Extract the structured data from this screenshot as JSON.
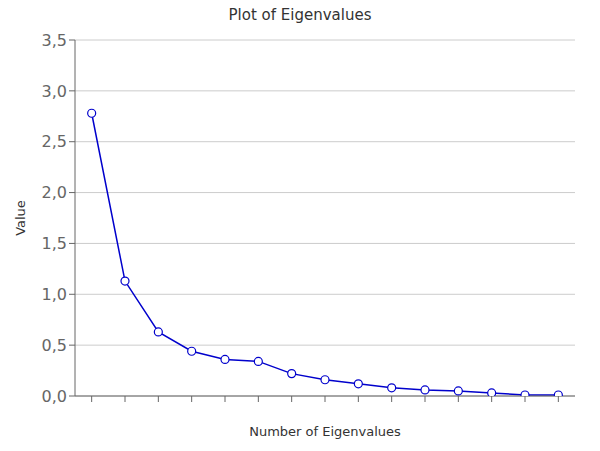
{
  "chart_data": {
    "type": "line",
    "title": "Plot of Eigenvalues",
    "x_label": "Number of Eigenvalues",
    "y_label": "Value",
    "x": [
      1,
      2,
      3,
      4,
      5,
      6,
      7,
      8,
      9,
      10,
      11,
      12,
      13,
      14,
      15
    ],
    "values": [
      2.78,
      1.13,
      0.63,
      0.44,
      0.36,
      0.34,
      0.22,
      0.16,
      0.12,
      0.08,
      0.06,
      0.05,
      0.03,
      0.01,
      0.01
    ],
    "color": "#0000CC",
    "marker": "circle",
    "xlim": [
      0.5,
      15.5
    ],
    "xticks": [
      1,
      2,
      3,
      4,
      5,
      6,
      7,
      8,
      9,
      10,
      11,
      12,
      13,
      14,
      15
    ],
    "ylim": [
      0.0,
      3.5
    ],
    "yticks": [
      {
        "value": 0.0,
        "label": "0,0"
      },
      {
        "value": 0.5,
        "label": "0,5"
      },
      {
        "value": 1.0,
        "label": "1,0"
      },
      {
        "value": 1.5,
        "label": "1,5"
      },
      {
        "value": 2.0,
        "label": "2,0"
      },
      {
        "value": 2.5,
        "label": "2,5"
      },
      {
        "value": 3.0,
        "label": "3,0"
      },
      {
        "value": 3.5,
        "label": "3,5"
      }
    ],
    "grid": "y",
    "tick_labels": "y"
  }
}
